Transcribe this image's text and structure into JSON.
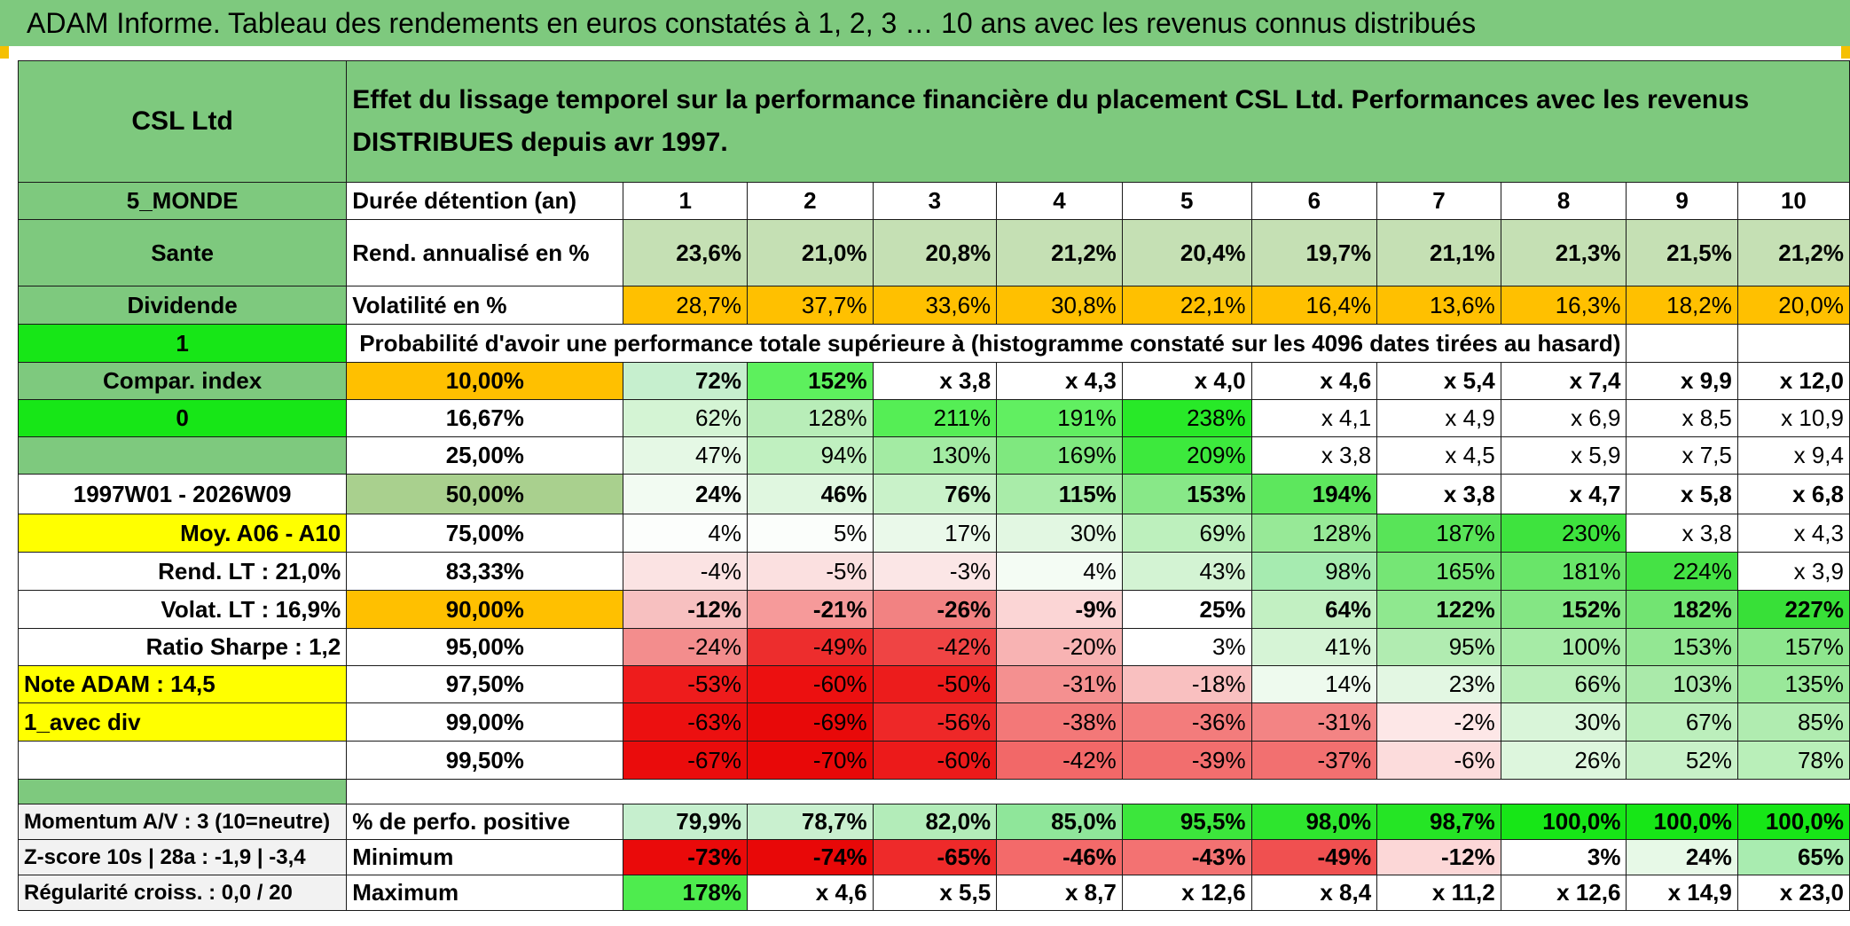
{
  "title": "ADAM Informe. Tableau des rendements en euros constatés à 1, 2, 3 … 10 ans avec les revenus connus distribués",
  "header": {
    "fund": "CSL Ltd",
    "description": "Effet du lissage temporel sur la performance financière du placement CSL Ltd. Performances avec les revenus DISTRIBUES depuis avr 1997."
  },
  "side": {
    "region": "5_MONDE",
    "sector": "Sante",
    "type": "Dividende",
    "flag1": "1",
    "compar_label": "Compar. index",
    "flag0": "0",
    "period": "1997W01 - 2026W09",
    "moy": "Moy. A06 - A10",
    "rend_lt": "Rend. LT :   21,0%",
    "volat_lt": "Volat. LT :   16,9%",
    "sharpe": "Ratio Sharpe :    1,2",
    "note": "Note ADAM : 14,5",
    "avec_div": "1_avec div",
    "momentum": "Momentum A/V : 3 (10=neutre)",
    "zscore": "Z-score 10s | 28a : -1,9 | -3,4",
    "regularite": "Régularité croiss. : 0,0 / 20"
  },
  "rows": {
    "duree_label": "Durée détention (an)",
    "years": [
      "1",
      "2",
      "3",
      "4",
      "5",
      "6",
      "7",
      "8",
      "9",
      "10"
    ],
    "rend_label": "Rend. annualisé en %",
    "rend": [
      "23,6%",
      "21,0%",
      "20,8%",
      "21,2%",
      "20,4%",
      "19,7%",
      "21,1%",
      "21,3%",
      "21,5%",
      "21,2%"
    ],
    "vol_label": "Volatilité en %",
    "vol": [
      "28,7%",
      "37,7%",
      "33,6%",
      "30,8%",
      "22,1%",
      "16,4%",
      "13,6%",
      "16,3%",
      "18,2%",
      "20,0%"
    ],
    "prob_label": "Probabilité d'avoir une performance totale supérieure à (histogramme constaté sur les 4096 dates tirées au hasard)"
  },
  "percentiles": [
    {
      "label": "10,00%",
      "values": [
        "72%",
        "152%",
        "x 3,8",
        "x 4,3",
        "x 4,0",
        "x 4,6",
        "x 5,4",
        "x 7,4",
        "x 9,9",
        "x 12,0"
      ]
    },
    {
      "label": "16,67%",
      "values": [
        "62%",
        "128%",
        "211%",
        "191%",
        "238%",
        "x 4,1",
        "x 4,9",
        "x 6,9",
        "x 8,5",
        "x 10,9"
      ]
    },
    {
      "label": "25,00%",
      "values": [
        "47%",
        "94%",
        "130%",
        "169%",
        "209%",
        "x 3,8",
        "x 4,5",
        "x 5,9",
        "x 7,5",
        "x 9,4"
      ]
    },
    {
      "label": "50,00%",
      "values": [
        "24%",
        "46%",
        "76%",
        "115%",
        "153%",
        "194%",
        "x 3,8",
        "x 4,7",
        "x 5,8",
        "x 6,8"
      ]
    },
    {
      "label": "75,00%",
      "values": [
        "4%",
        "5%",
        "17%",
        "30%",
        "69%",
        "128%",
        "187%",
        "230%",
        "x 3,8",
        "x 4,3"
      ]
    },
    {
      "label": "83,33%",
      "values": [
        "-4%",
        "-5%",
        "-3%",
        "4%",
        "43%",
        "98%",
        "165%",
        "181%",
        "224%",
        "x 3,9"
      ]
    },
    {
      "label": "90,00%",
      "values": [
        "-12%",
        "-21%",
        "-26%",
        "-9%",
        "25%",
        "64%",
        "122%",
        "152%",
        "182%",
        "227%"
      ]
    },
    {
      "label": "95,00%",
      "values": [
        "-24%",
        "-49%",
        "-42%",
        "-20%",
        "3%",
        "41%",
        "95%",
        "100%",
        "153%",
        "157%"
      ]
    },
    {
      "label": "97,50%",
      "values": [
        "-53%",
        "-60%",
        "-50%",
        "-31%",
        "-18%",
        "14%",
        "23%",
        "66%",
        "103%",
        "135%"
      ]
    },
    {
      "label": "99,00%",
      "values": [
        "-63%",
        "-69%",
        "-56%",
        "-38%",
        "-36%",
        "-31%",
        "-2%",
        "30%",
        "67%",
        "85%"
      ]
    },
    {
      "label": "99,50%",
      "values": [
        "-67%",
        "-70%",
        "-60%",
        "-42%",
        "-39%",
        "-37%",
        "-6%",
        "26%",
        "52%",
        "78%"
      ]
    }
  ],
  "bottom": [
    {
      "label": "% de perfo. positive",
      "values": [
        "79,9%",
        "78,7%",
        "82,0%",
        "85,0%",
        "95,5%",
        "98,0%",
        "98,7%",
        "100,0%",
        "100,0%",
        "100,0%"
      ]
    },
    {
      "label": "Minimum",
      "values": [
        "-73%",
        "-74%",
        "-65%",
        "-46%",
        "-43%",
        "-49%",
        "-12%",
        "3%",
        "24%",
        "65%"
      ]
    },
    {
      "label": "Maximum",
      "values": [
        "178%",
        "x 4,6",
        "x 5,5",
        "x 8,7",
        "x 12,6",
        "x 8,4",
        "x 11,2",
        "x 12,6",
        "x 14,9",
        "x 23,0"
      ]
    }
  ],
  "colors": {
    "header_green": "#7ec97e",
    "light_green": "#c5e0b4",
    "bright_green": "#17e617",
    "orange": "#ffc000",
    "yellow": "#ffff00",
    "red_text": "#d9141b"
  }
}
